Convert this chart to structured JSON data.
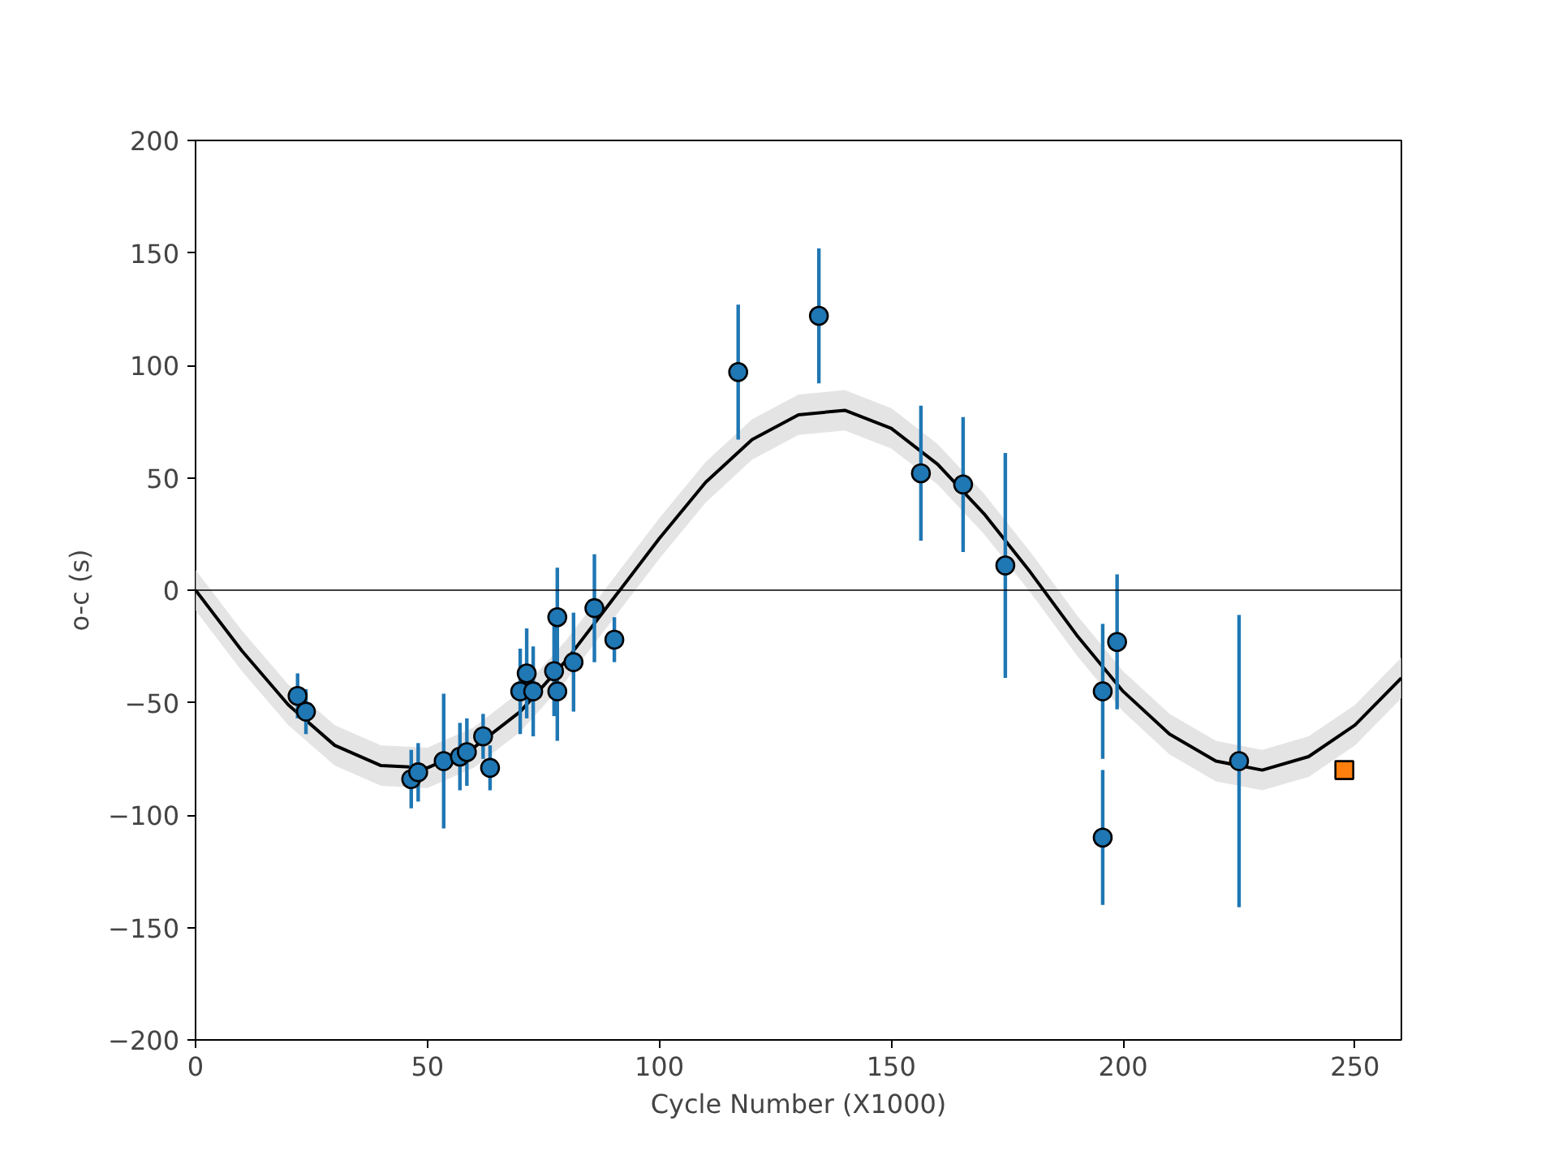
{
  "chart_data": {
    "type": "scatter",
    "xlabel": "Cycle Number (X1000)",
    "ylabel": "o-c (s)",
    "xlim": [
      0,
      260
    ],
    "ylim": [
      -200,
      200
    ],
    "xticks": [
      0,
      50,
      100,
      150,
      200,
      250
    ],
    "yticks": [
      {
        "value": -200,
        "label": "−200"
      },
      {
        "value": -150,
        "label": "−150"
      },
      {
        "value": -100,
        "label": "−100"
      },
      {
        "value": -50,
        "label": "−50"
      },
      0,
      50,
      100,
      150,
      200
    ],
    "grid": false,
    "ref_lines": [
      {
        "axis": "y",
        "value": 0,
        "color": "#000000"
      }
    ],
    "series": [
      {
        "type": "line",
        "color": "#000000",
        "marker": "none",
        "line_style": "solid",
        "x": [
          0,
          10,
          20,
          30,
          40,
          50,
          60,
          70,
          80,
          90,
          100,
          110,
          120,
          130,
          140,
          150,
          160,
          170,
          180,
          190,
          200,
          210,
          220,
          230,
          240,
          250,
          260
        ],
        "values": [
          0,
          -27,
          -51,
          -69,
          -78,
          -79,
          -70,
          -54,
          -31,
          -4,
          23,
          48,
          67,
          78,
          80,
          72,
          56,
          34,
          8,
          -20,
          -45,
          -64,
          -76,
          -80,
          -74,
          -60,
          -39
        ],
        "lower": [
          -9,
          -36,
          -60,
          -78,
          -87,
          -88,
          -79,
          -63,
          -40,
          -13,
          14,
          39,
          58,
          69,
          71,
          63,
          47,
          25,
          -1,
          -29,
          -54,
          -73,
          -85,
          -89,
          -83,
          -69,
          -48
        ],
        "upper": [
          9,
          -18,
          -42,
          -60,
          -69,
          -70,
          -61,
          -45,
          -22,
          5,
          32,
          57,
          76,
          87,
          89,
          81,
          65,
          43,
          17,
          -11,
          -36,
          -55,
          -67,
          -71,
          -65,
          -51,
          -30
        ]
      },
      {
        "color": "#1f77b4",
        "marker": "circle",
        "x": [
          22,
          23.8,
          46.5,
          48,
          53.5,
          57,
          58.5,
          62,
          63.5,
          70,
          71.4,
          72.8,
          77.3,
          78,
          78,
          81.5,
          86,
          90.3,
          117,
          134.4,
          156.4,
          165.5,
          174.6,
          195.6,
          195.6,
          198.7,
          225
        ],
        "values": [
          -47,
          -54,
          -84,
          -81,
          -76,
          -74,
          -72,
          -65,
          -79,
          -45,
          -37,
          -45,
          -36,
          -12,
          -45,
          -32,
          -8,
          -22,
          97,
          122,
          52,
          47,
          11,
          -45,
          -110,
          -23,
          -76
        ],
        "errors": [
          10,
          10,
          13,
          13,
          30,
          15,
          15,
          10,
          10,
          19,
          20,
          20,
          20,
          22,
          22,
          22,
          24,
          10,
          30,
          30,
          30,
          30,
          50,
          30,
          30,
          30,
          65
        ]
      },
      {
        "color": "#ff7f0e",
        "marker": "square",
        "x": [
          247.7
        ],
        "values": [
          -80
        ]
      }
    ]
  }
}
